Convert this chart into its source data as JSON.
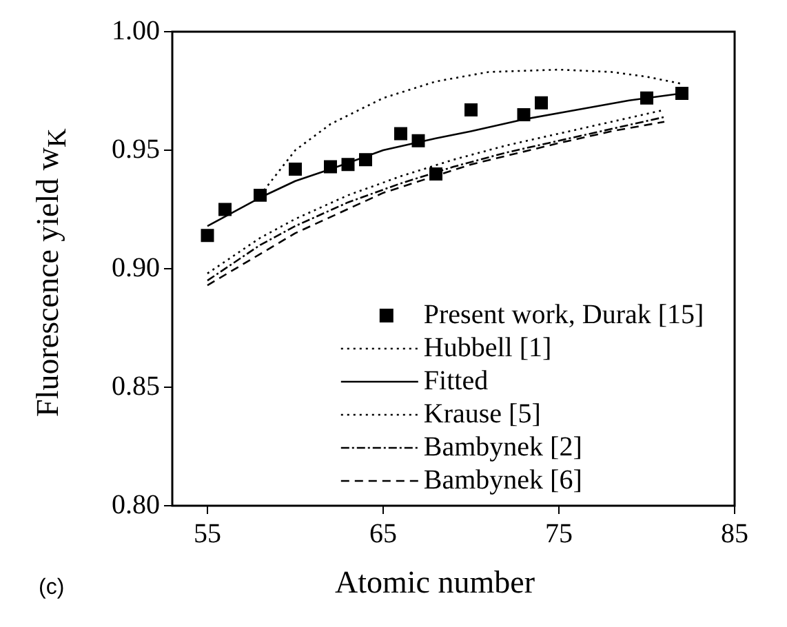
{
  "chart_data": {
    "type": "scatter",
    "xlabel": "Atomic number",
    "ylabel": "Fluorescence yield  w$_{K}$",
    "xlim": [
      53,
      85
    ],
    "xticks": [
      55,
      65,
      75,
      85
    ],
    "ylim": [
      0.8,
      1.0
    ],
    "yticks": [
      {
        "value": 0.8,
        "label": "0.80"
      },
      {
        "value": 0.85,
        "label": "0.85"
      },
      {
        "value": 0.9,
        "label": "0.90"
      },
      {
        "value": 0.95,
        "label": "0.95"
      },
      {
        "value": 1.0,
        "label": "1.00"
      }
    ],
    "grid": false,
    "legend": "bottom",
    "annotations": [
      "(c)"
    ],
    "series": [
      {
        "name": "Present work, Durak [15]",
        "marker": "square",
        "color": "#000000",
        "x": [
          55,
          56,
          58,
          60,
          62,
          63,
          64,
          66,
          67,
          68,
          70,
          73,
          74,
          80,
          82
        ],
        "values": [
          0.914,
          0.925,
          0.931,
          0.942,
          0.943,
          0.944,
          0.946,
          0.957,
          0.954,
          0.94,
          0.967,
          0.965,
          0.97,
          0.972,
          0.974
        ]
      },
      {
        "name": "Hubbell [1]",
        "type": "line",
        "line_style": "dotted",
        "color": "#000000",
        "x": [
          58,
          60,
          62,
          65,
          68,
          71,
          75,
          78,
          80,
          82
        ],
        "values": [
          0.931,
          0.95,
          0.961,
          0.972,
          0.979,
          0.983,
          0.984,
          0.983,
          0.981,
          0.978
        ]
      },
      {
        "name": "Fitted",
        "type": "line",
        "line_style": "solid",
        "color": "#000000",
        "x": [
          55,
          58,
          60,
          62,
          65,
          68,
          70,
          73,
          76,
          79,
          82
        ],
        "values": [
          0.918,
          0.93,
          0.937,
          0.942,
          0.95,
          0.955,
          0.958,
          0.963,
          0.967,
          0.971,
          0.974
        ]
      },
      {
        "name": "Krause [5]",
        "type": "line",
        "line_style": "dotted",
        "color": "#000000",
        "x": [
          55,
          58,
          60,
          63,
          66,
          69,
          72,
          75,
          78,
          81
        ],
        "values": [
          0.898,
          0.913,
          0.921,
          0.931,
          0.939,
          0.946,
          0.952,
          0.957,
          0.962,
          0.967
        ]
      },
      {
        "name": "Bambynek [2]",
        "type": "line",
        "line_style": "dashdot",
        "color": "#000000",
        "x": [
          55,
          58,
          60,
          63,
          66,
          69,
          72,
          75,
          78,
          81
        ],
        "values": [
          0.895,
          0.91,
          0.918,
          0.928,
          0.936,
          0.943,
          0.949,
          0.954,
          0.959,
          0.964
        ]
      },
      {
        "name": "Bambynek [6]",
        "type": "line",
        "line_style": "dashed",
        "color": "#000000",
        "x": [
          55,
          60,
          65,
          70,
          75,
          78,
          81
        ],
        "values": [
          0.893,
          0.915,
          0.932,
          0.944,
          0.953,
          0.958,
          0.962
        ]
      }
    ]
  }
}
